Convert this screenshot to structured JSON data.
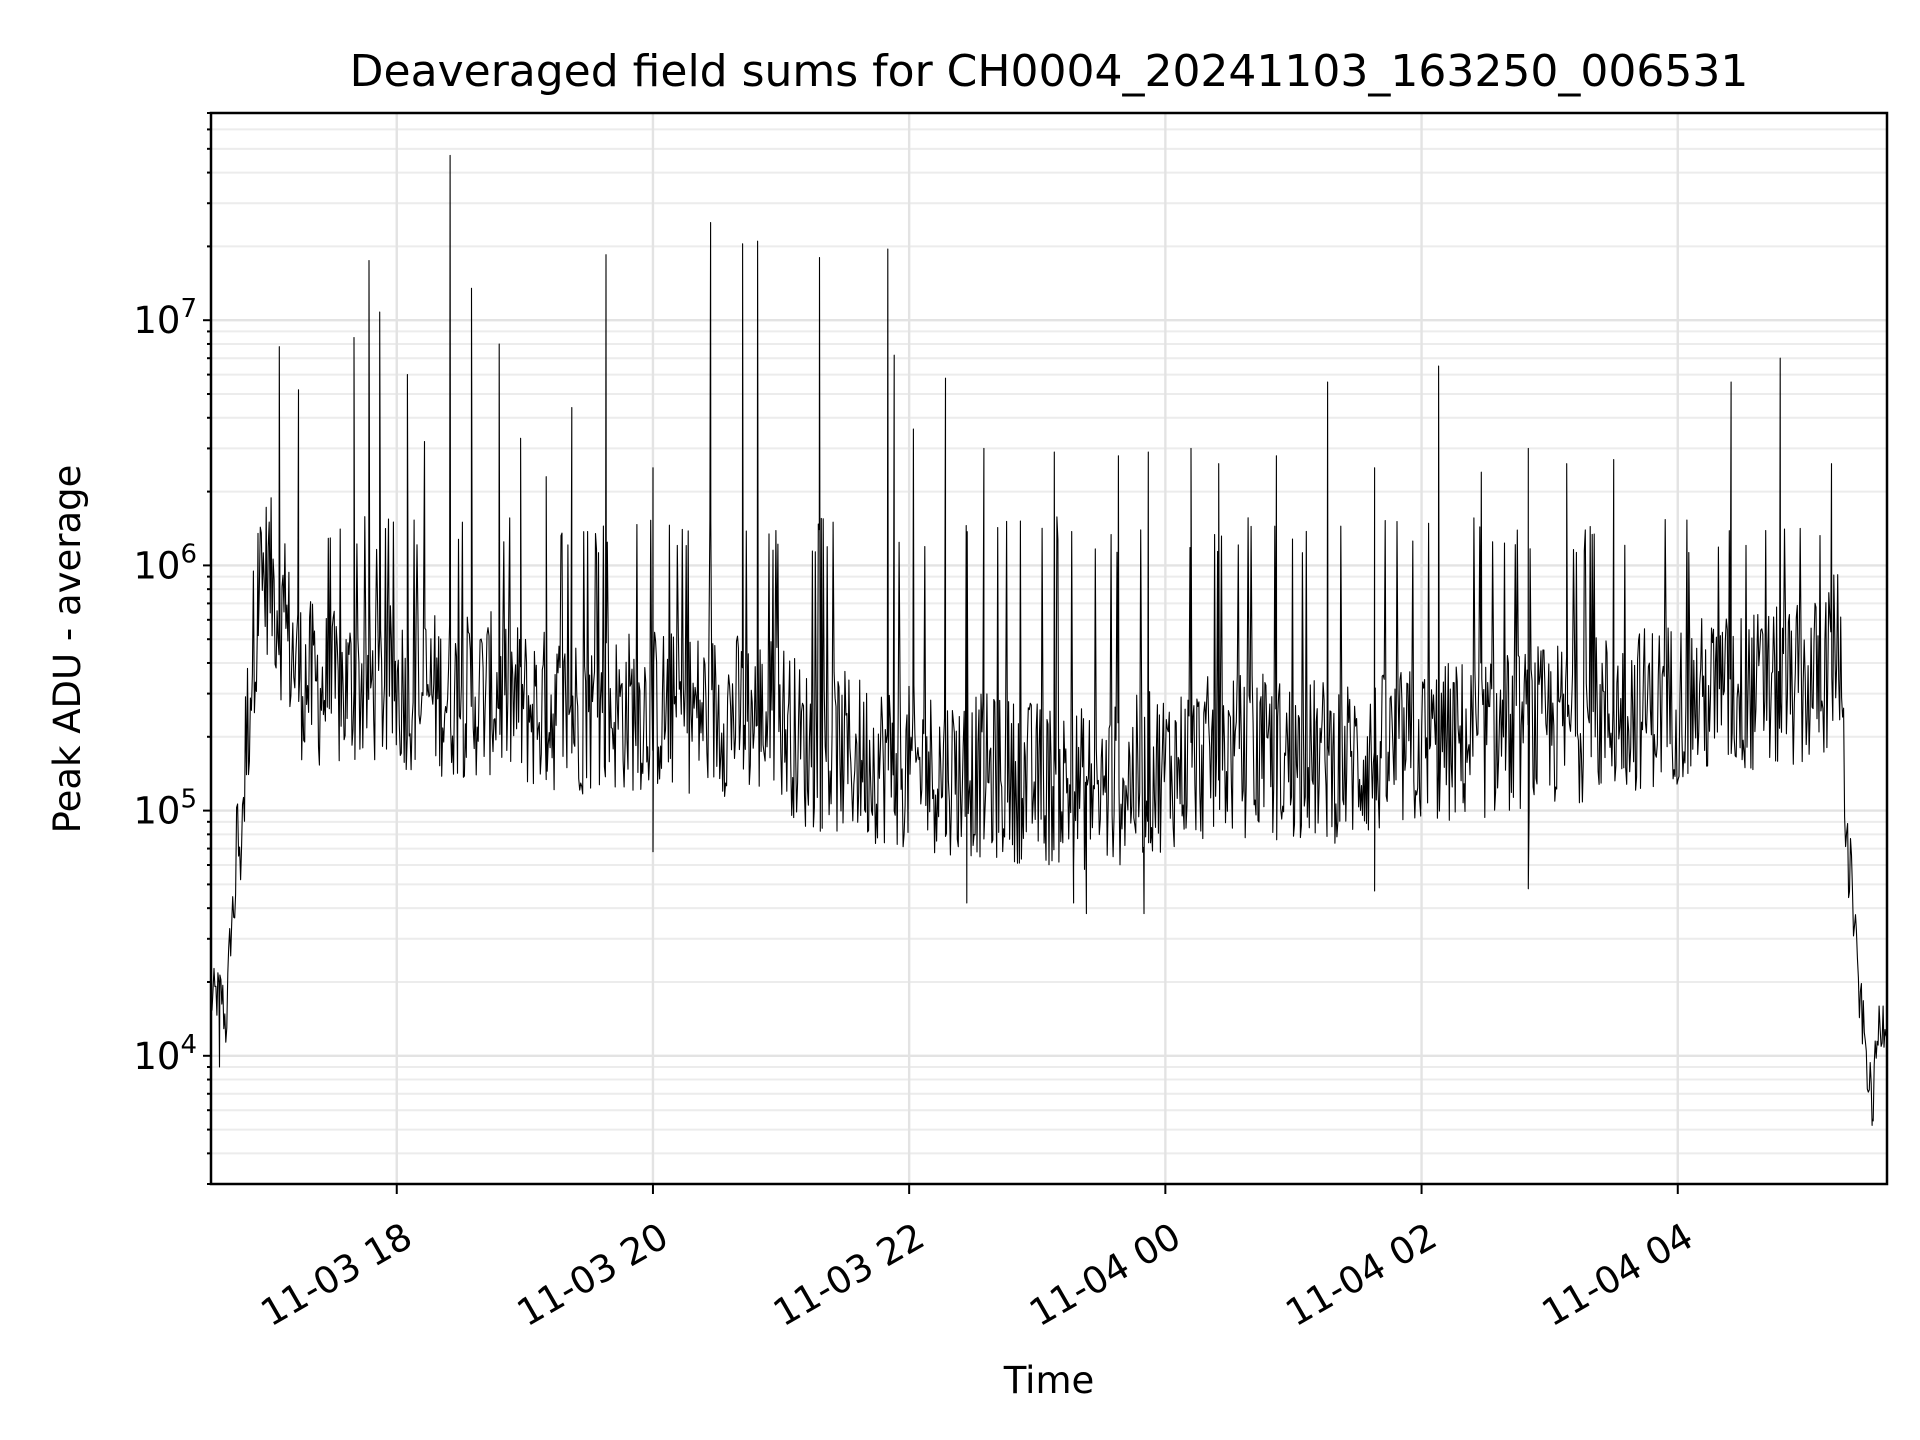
{
  "chart_data": {
    "type": "line",
    "title": "Deaveraged field sums for CH0004_20241103_163250_006531",
    "xlabel": "Time",
    "ylabel": "Peak ADU - average",
    "yscale": "log",
    "xlim": [
      "2024-11-03 16:33",
      "2024-11-04 05:38"
    ],
    "ylim": [
      3000,
      70000000
    ],
    "x_ticks": [
      {
        "value": "2024-11-03 18:00",
        "label": "11-03 18"
      },
      {
        "value": "2024-11-03 20:00",
        "label": "11-03 20"
      },
      {
        "value": "2024-11-03 22:00",
        "label": "11-03 22"
      },
      {
        "value": "2024-11-04 00:00",
        "label": "11-04 00"
      },
      {
        "value": "2024-11-04 02:00",
        "label": "11-04 02"
      },
      {
        "value": "2024-11-04 04:00",
        "label": "11-04 04"
      }
    ],
    "y_ticks": [
      {
        "value": 10000,
        "base": "10",
        "exp": "4"
      },
      {
        "value": 100000,
        "base": "10",
        "exp": "5"
      },
      {
        "value": 1000000,
        "base": "10",
        "exp": "6"
      },
      {
        "value": 10000000,
        "base": "10",
        "exp": "7"
      }
    ],
    "grid": true,
    "line_color": "#000000",
    "baseline": [
      [
        "2024-11-03 16:33",
        17000
      ],
      [
        "2024-11-03 16:38",
        18000
      ],
      [
        "2024-11-03 16:40",
        13000
      ],
      [
        "2024-11-03 16:42",
        30000
      ],
      [
        "2024-11-03 16:45",
        60000
      ],
      [
        "2024-11-03 16:48",
        110000
      ],
      [
        "2024-11-03 16:51",
        300000
      ],
      [
        "2024-11-03 16:55",
        800000
      ],
      [
        "2024-11-03 17:00",
        950000
      ],
      [
        "2024-11-03 17:06",
        600000
      ],
      [
        "2024-11-03 17:15",
        350000
      ],
      [
        "2024-11-03 17:30",
        300000
      ],
      [
        "2024-11-03 17:45",
        330000
      ],
      [
        "2024-11-03 18:00",
        320000
      ],
      [
        "2024-11-03 18:30",
        290000
      ],
      [
        "2024-11-03 18:50",
        300000
      ],
      [
        "2024-11-03 19:00",
        260000
      ],
      [
        "2024-11-03 19:30",
        250000
      ],
      [
        "2024-11-03 20:00",
        260000
      ],
      [
        "2024-11-03 20:30",
        250000
      ],
      [
        "2024-11-03 21:00",
        240000
      ],
      [
        "2024-11-03 21:10",
        180000
      ],
      [
        "2024-11-03 21:30",
        170000
      ],
      [
        "2024-11-03 22:00",
        150000
      ],
      [
        "2024-11-03 22:30",
        140000
      ],
      [
        "2024-11-03 23:00",
        130000
      ],
      [
        "2024-11-03 23:30",
        120000
      ],
      [
        "2024-11-04 00:00",
        150000
      ],
      [
        "2024-11-04 00:30",
        170000
      ],
      [
        "2024-11-04 01:00",
        160000
      ],
      [
        "2024-11-04 01:30",
        160000
      ],
      [
        "2024-11-04 02:00",
        180000
      ],
      [
        "2024-11-04 02:30",
        200000
      ],
      [
        "2024-11-04 03:00",
        220000
      ],
      [
        "2024-11-04 03:30",
        250000
      ],
      [
        "2024-11-04 04:00",
        280000
      ],
      [
        "2024-11-04 04:30",
        300000
      ],
      [
        "2024-11-04 05:00",
        320000
      ],
      [
        "2024-11-04 05:12",
        380000
      ],
      [
        "2024-11-04 05:15",
        600000
      ],
      [
        "2024-11-04 05:17",
        200000
      ],
      [
        "2024-11-04 05:20",
        80000
      ],
      [
        "2024-11-04 05:22",
        40000
      ],
      [
        "2024-11-04 05:25",
        18000
      ],
      [
        "2024-11-04 05:29",
        9000
      ],
      [
        "2024-11-04 05:31",
        6000
      ],
      [
        "2024-11-04 05:34",
        13000
      ],
      [
        "2024-11-04 05:38",
        15000
      ]
    ],
    "spikes": [
      [
        "2024-11-03 16:55",
        1350000
      ],
      [
        "2024-11-03 17:05",
        7800000
      ],
      [
        "2024-11-03 17:14",
        5200000
      ],
      [
        "2024-11-03 17:40",
        8500000
      ],
      [
        "2024-11-03 17:47",
        17500000
      ],
      [
        "2024-11-03 17:52",
        10800000
      ],
      [
        "2024-11-03 18:05",
        6000000
      ],
      [
        "2024-11-03 18:13",
        3200000
      ],
      [
        "2024-11-03 18:25",
        47000000
      ],
      [
        "2024-11-03 18:35",
        13500000
      ],
      [
        "2024-11-03 18:48",
        8000000
      ],
      [
        "2024-11-03 18:58",
        3300000
      ],
      [
        "2024-11-03 19:10",
        2300000
      ],
      [
        "2024-11-03 19:22",
        4400000
      ],
      [
        "2024-11-03 19:38",
        18500000
      ],
      [
        "2024-11-03 20:00",
        2500000
      ],
      [
        "2024-11-03 20:27",
        25000000
      ],
      [
        "2024-11-03 20:42",
        20500000
      ],
      [
        "2024-11-03 20:49",
        21000000
      ],
      [
        "2024-11-03 21:18",
        18000000
      ],
      [
        "2024-11-03 21:50",
        19500000
      ],
      [
        "2024-11-03 21:53",
        7200000
      ],
      [
        "2024-11-03 22:02",
        3600000
      ],
      [
        "2024-11-03 22:17",
        5800000
      ],
      [
        "2024-11-03 22:35",
        3000000
      ],
      [
        "2024-11-03 23:08",
        2900000
      ],
      [
        "2024-11-03 23:38",
        2800000
      ],
      [
        "2024-11-03 23:52",
        2900000
      ],
      [
        "2024-11-04 00:12",
        3000000
      ],
      [
        "2024-11-04 00:25",
        2600000
      ],
      [
        "2024-11-04 00:52",
        2800000
      ],
      [
        "2024-11-04 01:16",
        5600000
      ],
      [
        "2024-11-04 01:38",
        2500000
      ],
      [
        "2024-11-04 02:08",
        6500000
      ],
      [
        "2024-11-04 02:28",
        2400000
      ],
      [
        "2024-11-04 02:50",
        3000000
      ],
      [
        "2024-11-04 03:08",
        2600000
      ],
      [
        "2024-11-04 03:30",
        2700000
      ],
      [
        "2024-11-04 04:25",
        5600000
      ],
      [
        "2024-11-04 04:48",
        7000000
      ],
      [
        "2024-11-04 05:12",
        2600000
      ]
    ],
    "dips": [
      [
        "2024-11-03 16:37",
        9000
      ],
      [
        "2024-11-03 20:00",
        68000
      ],
      [
        "2024-11-03 22:27",
        42000
      ],
      [
        "2024-11-03 23:17",
        42000
      ],
      [
        "2024-11-03 23:23",
        38000
      ],
      [
        "2024-11-03 23:50",
        38000
      ],
      [
        "2024-11-04 01:38",
        47000
      ],
      [
        "2024-11-04 02:50",
        48000
      ],
      [
        "2024-11-04 05:31",
        5200
      ]
    ]
  }
}
